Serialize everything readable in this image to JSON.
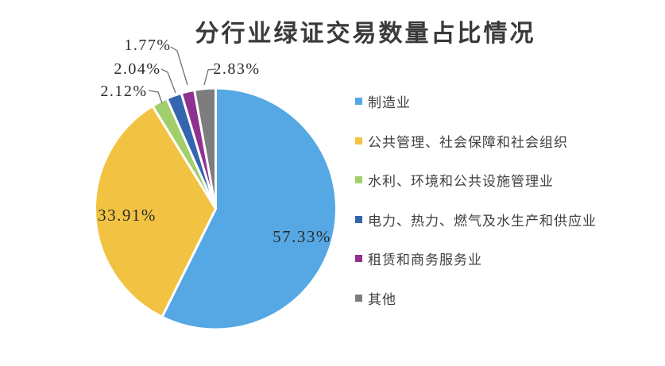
{
  "title": "分行业绿证交易数量占比情况",
  "chart_data": {
    "type": "pie",
    "title": "分行业绿证交易数量占比情况",
    "start_angle_deg": 0,
    "direction": "clockwise",
    "legend_position": "right",
    "background_color": "#ffffff",
    "slice_border_color": "#ffffff",
    "label_color": "#2b2b2b",
    "leader_line_color": "#6f6f6f",
    "slices": [
      {
        "label": "制造业",
        "value": 57.33,
        "pct_label": "57.33%",
        "color": "#55A8E4",
        "label_placement": "inside"
      },
      {
        "label": "公共管理、社会保障和社会组织",
        "value": 33.91,
        "pct_label": "33.91%",
        "color": "#F2C342",
        "label_placement": "inside"
      },
      {
        "label": "水利、环境和公共设施管理业",
        "value": 2.12,
        "pct_label": "2.12%",
        "color": "#A2CE6B",
        "label_placement": "outside"
      },
      {
        "label": "电力、热力、燃气及水生产和供应业",
        "value": 2.04,
        "pct_label": "2.04%",
        "color": "#3465AE",
        "label_placement": "outside"
      },
      {
        "label": "租赁和商务服务业",
        "value": 1.77,
        "pct_label": "1.77%",
        "color": "#8E3190",
        "label_placement": "outside"
      },
      {
        "label": "其他",
        "value": 2.83,
        "pct_label": "2.83%",
        "color": "#7D7D7D",
        "label_placement": "outside"
      }
    ]
  }
}
